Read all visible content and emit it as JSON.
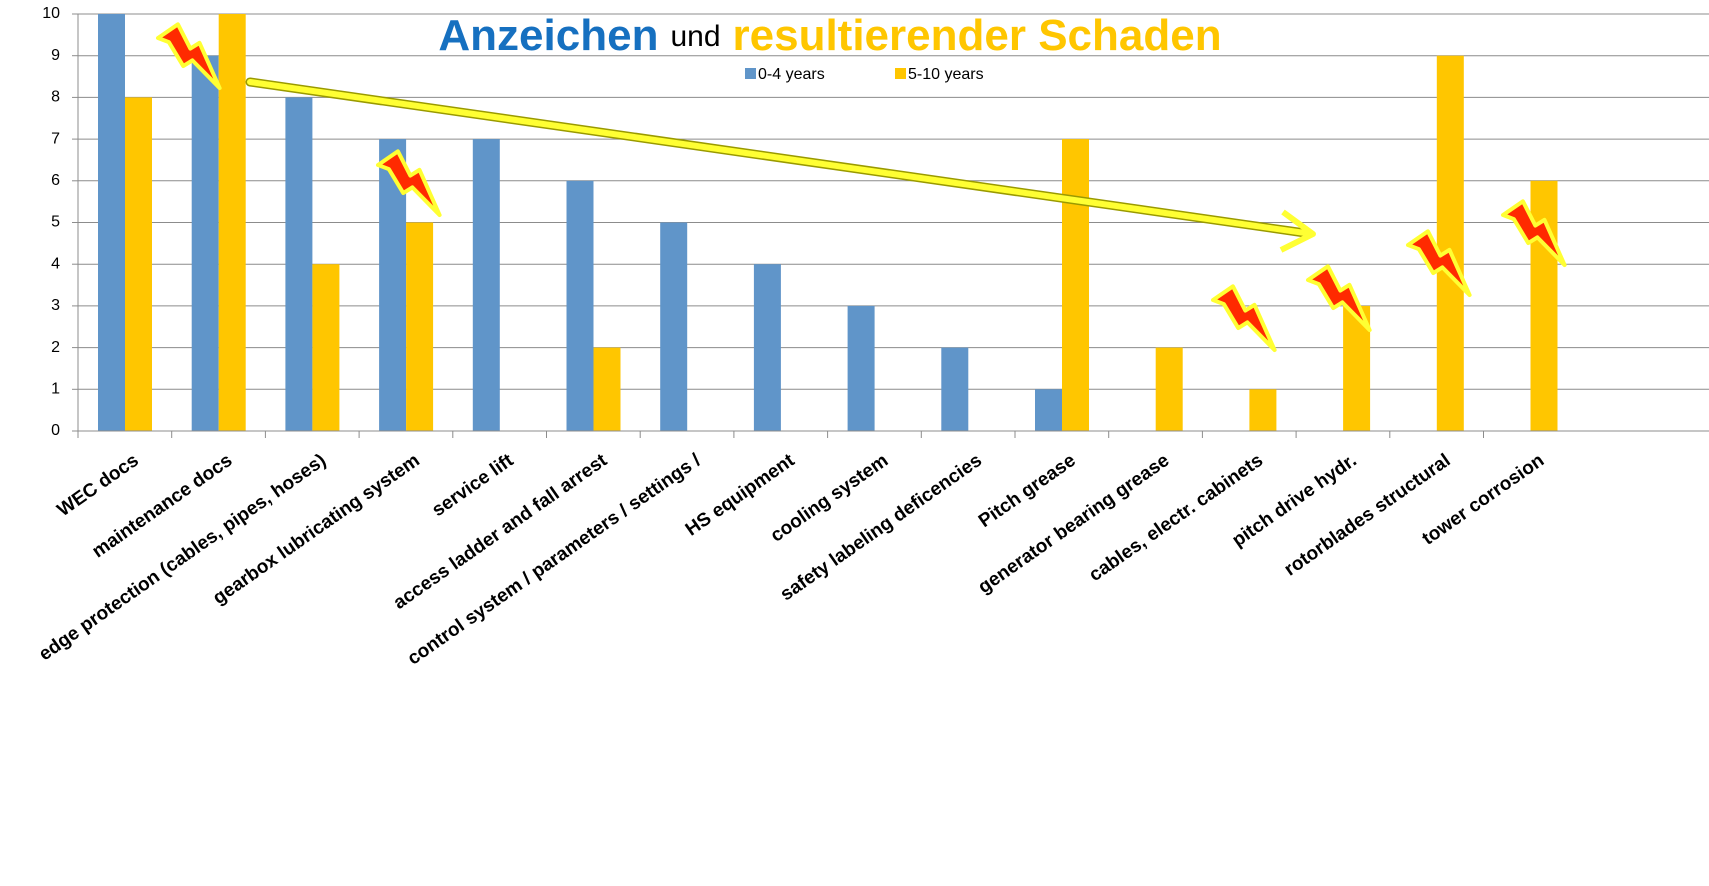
{
  "chart_data": {
    "type": "bar",
    "title": {
      "part1": "Anzeichen",
      "part2": "und",
      "part3": "resultierender Schaden"
    },
    "categories": [
      "WEC docs",
      "maintenance docs",
      "edge protection (cables, pipes, hoses)",
      "gearbox  lubricating system",
      "service lift",
      "access ladder and fall arrest",
      "control system / parameters / settings /",
      "HS equipment",
      "cooling system",
      "safety labeling deficencies",
      "Pitch grease",
      "generator bearing grease",
      "cables, electr. cabinets",
      "pitch drive  hydr.",
      "rotorblades structural",
      "tower corrosion"
    ],
    "series": [
      {
        "name": "0-4 years",
        "color": "#6095c9",
        "values": [
          10,
          9,
          8,
          7,
          7,
          6,
          5,
          4,
          3,
          2,
          1,
          null,
          null,
          null,
          null,
          null
        ]
      },
      {
        "name": "5-10 years",
        "color": "#ffc600",
        "values": [
          8,
          10,
          4,
          5,
          null,
          2,
          null,
          null,
          null,
          null,
          7,
          2,
          1,
          3,
          9,
          6
        ]
      }
    ],
    "ylim": [
      0,
      10
    ],
    "yticks": [
      0,
      1,
      2,
      3,
      4,
      5,
      6,
      7,
      8,
      9,
      10
    ],
    "grid": true
  }
}
